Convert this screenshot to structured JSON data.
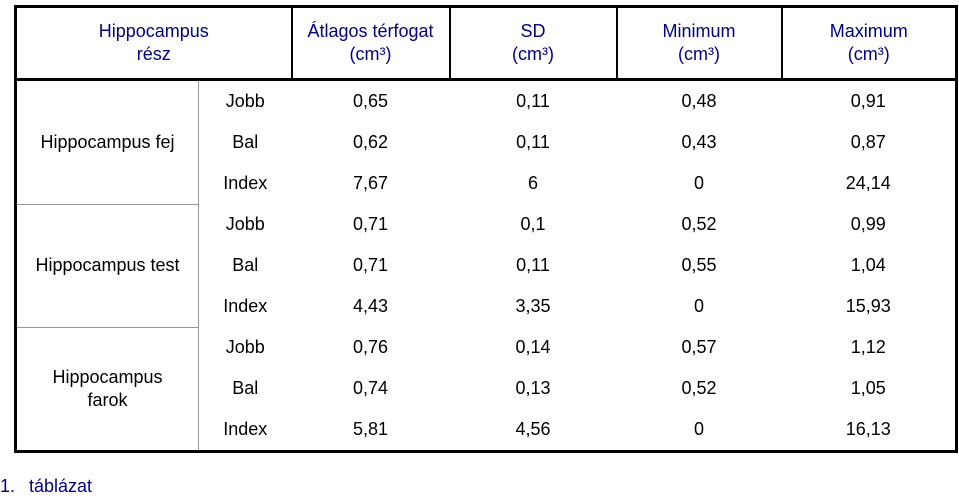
{
  "table": {
    "header": [
      [
        "Hippocampus",
        "rész"
      ],
      [
        "Átlagos térfogat",
        "(cm³)"
      ],
      [
        "SD",
        "(cm³)"
      ],
      [
        "Minimum",
        "(cm³)"
      ],
      [
        "Maximum",
        "(cm³)"
      ]
    ],
    "groups": [
      {
        "name": [
          "Hippocampus fej"
        ],
        "rows": [
          {
            "label": "Jobb",
            "values": [
              "0,65",
              "0,11",
              "0,48",
              "0,91"
            ]
          },
          {
            "label": "Bal",
            "values": [
              "0,62",
              "0,11",
              "0,43",
              "0,87"
            ]
          },
          {
            "label": "Index",
            "values": [
              "7,67",
              "6",
              "0",
              "24,14"
            ]
          }
        ]
      },
      {
        "name": [
          "Hippocampus test"
        ],
        "rows": [
          {
            "label": "Jobb",
            "values": [
              "0,71",
              "0,1",
              "0,52",
              "0,99"
            ]
          },
          {
            "label": "Bal",
            "values": [
              "0,71",
              "0,11",
              "0,55",
              "1,04"
            ]
          },
          {
            "label": "Index",
            "values": [
              "4,43",
              "3,35",
              "0",
              "15,93"
            ]
          }
        ]
      },
      {
        "name": [
          "Hippocampus",
          "farok"
        ],
        "rows": [
          {
            "label": "Jobb",
            "values": [
              "0,76",
              "0,14",
              "0,57",
              "1,12"
            ]
          },
          {
            "label": "Bal",
            "values": [
              "0,74",
              "0,13",
              "0,52",
              "1,05"
            ]
          },
          {
            "label": "Index",
            "values": [
              "5,81",
              "4,56",
              "0",
              "16,13"
            ]
          }
        ]
      }
    ],
    "caption": [
      "1.",
      "táblázat"
    ]
  }
}
